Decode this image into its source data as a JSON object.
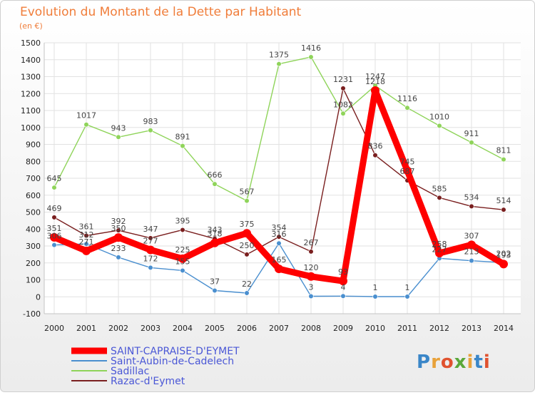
{
  "title": "Evolution du Montant de la Dette par Habitant",
  "subtitle": "(en €)",
  "logo": "Proxiti",
  "colors": {
    "title": "#f07d3a",
    "legend_text": "#4a57d6"
  },
  "chart_data": {
    "type": "line",
    "x": [
      "2000",
      "2001",
      "2002",
      "2003",
      "2004",
      "2005",
      "2006",
      "2007",
      "2008",
      "2009",
      "2010",
      "2011",
      "2012",
      "2013",
      "2014"
    ],
    "ylim": [
      -100,
      1500
    ],
    "yticks": [
      -100,
      0,
      100,
      200,
      300,
      400,
      500,
      600,
      700,
      800,
      900,
      1000,
      1100,
      1200,
      1300,
      1400,
      1500
    ],
    "grid": true,
    "legend_position": "bottom-left",
    "series": [
      {
        "name": "SAINT-CAPRAISE-D'EYMET",
        "color": "#ff0000",
        "values": [
          351,
          271,
          350,
          277,
          225,
          318,
          375,
          165,
          120,
          93,
          1218,
          745,
          258,
          307,
          193
        ]
      },
      {
        "name": "Saint-Aubin-de-Cadelech",
        "color": "#4a8fcf",
        "values": [
          306,
          312,
          233,
          172,
          155,
          37,
          22,
          316,
          3,
          4,
          1,
          1,
          227,
          213,
          202
        ]
      },
      {
        "name": "Sadillac",
        "color": "#8fd45a",
        "values": [
          645,
          1017,
          943,
          983,
          891,
          666,
          567,
          1375,
          1416,
          1082,
          1247,
          1116,
          1010,
          911,
          811
        ]
      },
      {
        "name": "Razac-d'Eymet",
        "color": "#7a1f1f",
        "values": [
          469,
          361,
          392,
          347,
          395,
          343,
          250,
          354,
          267,
          1231,
          836,
          687,
          585,
          534,
          514
        ]
      }
    ]
  }
}
